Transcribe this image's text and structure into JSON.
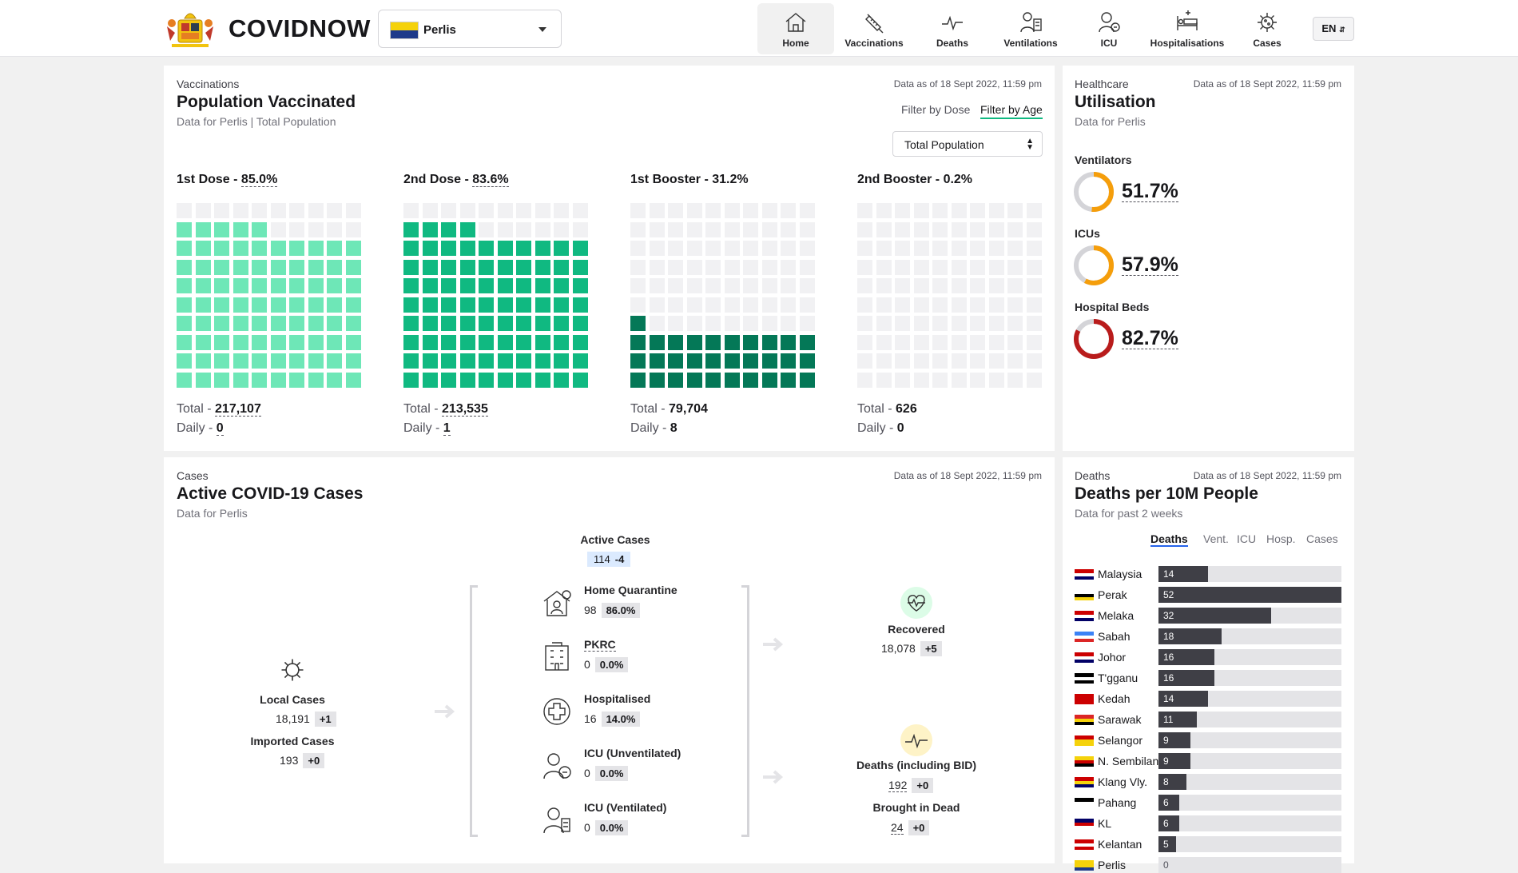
{
  "header": {
    "brand": "COVIDNOW",
    "state": "Perlis",
    "lang": "EN",
    "nav": [
      {
        "label": "Home",
        "icon": "home-icon",
        "active": true
      },
      {
        "label": "Vaccinations",
        "icon": "syringe-icon"
      },
      {
        "label": "Deaths",
        "icon": "pulse-icon"
      },
      {
        "label": "Ventilations",
        "icon": "ventilator-icon"
      },
      {
        "label": "ICU",
        "icon": "icu-icon"
      },
      {
        "label": "Hospitalisations",
        "icon": "hospital-bed-icon"
      },
      {
        "label": "Cases",
        "icon": "virus-icon"
      }
    ]
  },
  "vaccination": {
    "eyebrow": "Vaccinations",
    "title": "Population Vaccinated",
    "subtitle": "Data for Perlis | Total Population",
    "as_of": "Data as of 18 Sept 2022, 11:59 pm",
    "filter_dose": "Filter by Dose",
    "filter_age": "Filter by Age",
    "population_select": "Total Population",
    "doses": [
      {
        "label": "1st Dose - ",
        "pct": "85.0%",
        "pct_value": 85.0,
        "total": "217,107",
        "daily": "0",
        "color": "#6ee7b7"
      },
      {
        "label": "2nd Dose - ",
        "pct": "83.6%",
        "pct_value": 83.6,
        "total": "213,535",
        "daily": "1",
        "color": "#10b981"
      },
      {
        "label": "1st Booster - ",
        "pct": "31.2%",
        "pct_value": 31.2,
        "total": "79,704",
        "daily": "8",
        "color": "#047857"
      },
      {
        "label": "2nd Booster - ",
        "pct": "0.2%",
        "pct_value": 0.2,
        "total": "626",
        "daily": "0",
        "color": "#064e3b"
      }
    ],
    "total_label": "Total - ",
    "daily_label": "Daily - "
  },
  "utilisation": {
    "eyebrow": "Healthcare",
    "title": "Utilisation",
    "subtitle": "Data for Perlis",
    "as_of": "Data as of 18 Sept 2022, 11:59 pm",
    "items": [
      {
        "label": "Ventilators",
        "value": "51.7%",
        "pct": 51.7,
        "color": "#f59e0b"
      },
      {
        "label": "ICUs",
        "value": "57.9%",
        "pct": 57.9,
        "color": "#f59e0b"
      },
      {
        "label": "Hospital Beds",
        "value": "82.7%",
        "pct": 82.7,
        "color": "#b91c1c"
      }
    ]
  },
  "cases": {
    "eyebrow": "Cases",
    "title": "Active COVID-19 Cases",
    "subtitle": "Data for Perlis",
    "as_of": "Data as of 18 Sept 2022, 11:59 pm",
    "active_label": "Active Cases",
    "active_value": "114",
    "active_delta": "-4",
    "local_label": "Local Cases",
    "local_value": "18,191",
    "local_delta": "+1",
    "imported_label": "Imported Cases",
    "imported_value": "193",
    "imported_delta": "+0",
    "states": [
      {
        "label": "Home Quarantine",
        "value": "98",
        "pct": "86.0%",
        "icon": "home-quarantine-icon"
      },
      {
        "label": "PKRC",
        "value": "0",
        "pct": "0.0%",
        "icon": "pkrc-icon"
      },
      {
        "label": "Hospitalised",
        "value": "16",
        "pct": "14.0%",
        "icon": "hospital-cross-icon"
      },
      {
        "label": "ICU (Unventilated)",
        "value": "0",
        "pct": "0.0%",
        "icon": "icu-unventilated-icon"
      },
      {
        "label": "ICU (Ventilated)",
        "value": "0",
        "pct": "0.0%",
        "icon": "icu-ventilated-icon"
      }
    ],
    "recovered_label": "Recovered",
    "recovered_value": "18,078",
    "recovered_delta": "+5",
    "deaths_label": "Deaths (including BID)",
    "deaths_value": "192",
    "deaths_delta": "+0",
    "bid_label": "Brought in Dead",
    "bid_value": "24",
    "bid_delta": "+0"
  },
  "deaths_panel": {
    "eyebrow": "Deaths",
    "title": "Deaths per 10M People",
    "subtitle": "Data for past 2 weeks",
    "as_of": "Data as of 18 Sept 2022, 11:59 pm",
    "tabs": [
      "Deaths",
      "Vent.",
      "ICU",
      "Hosp.",
      "Cases"
    ]
  },
  "chart_data": {
    "type": "bar",
    "categories": [
      "Malaysia",
      "Perak",
      "Melaka",
      "Sabah",
      "Johor",
      "T'gganu",
      "Kedah",
      "Sarawak",
      "Selangor",
      "N. Sembilan",
      "Klang Vly.",
      "Pahang",
      "KL",
      "Kelantan",
      "Perlis"
    ],
    "values": [
      14,
      52,
      32,
      18,
      16,
      16,
      14,
      11,
      9,
      9,
      8,
      6,
      6,
      5,
      0
    ],
    "xlim": [
      0,
      52
    ]
  }
}
